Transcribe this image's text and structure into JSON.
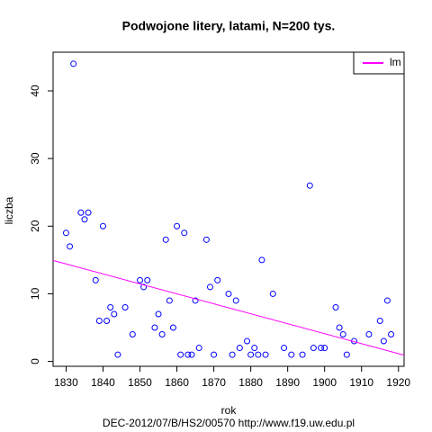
{
  "chart_data": {
    "type": "scatter",
    "title": "Podwojone litery, latami, N=200 tys.",
    "x_label": "rok",
    "y_label": "liczba",
    "footer": "DEC-2012/07/B/HS2/00570   http://www.f19.uw.edu.pl",
    "xlim": [
      1826.48,
      1921.52
    ],
    "ylim": [
      -0.72,
      45.72
    ],
    "xticks": [
      1830,
      1840,
      1850,
      1860,
      1870,
      1880,
      1890,
      1900,
      1910,
      1920
    ],
    "yticks": [
      0,
      10,
      20,
      30,
      40
    ],
    "legend_position": "top-right",
    "series": [
      {
        "color": "#0000ff",
        "x": [
          1830,
          1831,
          1832,
          1834,
          1835,
          1836,
          1838,
          1839,
          1840,
          1841,
          1842,
          1843,
          1844,
          1846,
          1848,
          1850,
          1851,
          1852,
          1854,
          1855,
          1856,
          1857,
          1858,
          1859,
          1860,
          1861,
          1862,
          1863,
          1864,
          1865,
          1866,
          1868,
          1869,
          1870,
          1871,
          1874,
          1875,
          1876,
          1877,
          1879,
          1880,
          1881,
          1882,
          1883,
          1884,
          1886,
          1889,
          1891,
          1894,
          1896,
          1897,
          1899,
          1900,
          1903,
          1904,
          1905,
          1906,
          1908,
          1912,
          1915,
          1916,
          1917,
          1918
        ],
        "values": [
          19,
          17,
          44,
          22,
          21,
          22,
          12,
          6,
          20,
          6,
          8,
          7,
          1,
          8,
          4,
          12,
          11,
          12,
          5,
          7,
          4,
          18,
          9,
          5,
          20,
          1,
          19,
          1,
          1,
          9,
          2,
          18,
          11,
          1,
          12,
          10,
          1,
          9,
          2,
          3,
          1,
          2,
          1,
          15,
          1,
          10,
          2,
          1,
          1,
          26,
          2,
          2,
          2,
          8,
          5,
          4,
          1,
          3,
          4,
          6,
          3,
          9,
          4
        ]
      },
      {
        "name": "lm",
        "color": "#ff00ff",
        "kind": "line",
        "x": [
          1826.48,
          1921.52
        ],
        "values": [
          14.93,
          0.93
        ]
      }
    ]
  }
}
